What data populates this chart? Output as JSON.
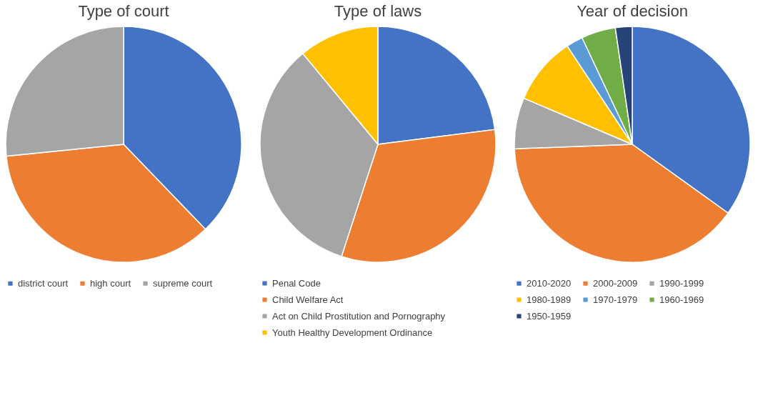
{
  "chart_data": [
    {
      "type": "pie",
      "title": "Type of court",
      "categories": [
        "district court",
        "high court",
        "supreme court"
      ],
      "values": [
        37.8,
        35.6,
        26.6
      ],
      "colors": [
        "#4472c4",
        "#ed7d31",
        "#a5a5a5"
      ],
      "legend": "bottom"
    },
    {
      "type": "pie",
      "title": "Type of laws",
      "categories": [
        "Penal Code",
        "Child Welfare Act",
        "Act on Child Prostitution and Pornography",
        "Youth Healthy Development Ordinance"
      ],
      "values": [
        23,
        32,
        34,
        11
      ],
      "colors": [
        "#4472c4",
        "#ed7d31",
        "#a5a5a5",
        "#ffc000"
      ],
      "legend": "bottom"
    },
    {
      "type": "pie",
      "title": "Year of decision",
      "categories": [
        "2010-2020",
        "2000-2009",
        "1990-1999",
        "1980-1989",
        "1970-1979",
        "1960-1969",
        "1950-1959"
      ],
      "values": [
        34.9,
        39.5,
        7.0,
        9.3,
        2.3,
        4.7,
        2.3
      ],
      "colors": [
        "#4472c4",
        "#ed7d31",
        "#a5a5a5",
        "#ffc000",
        "#5b9bd5",
        "#70ad47",
        "#264478"
      ],
      "legend": "bottom"
    }
  ]
}
